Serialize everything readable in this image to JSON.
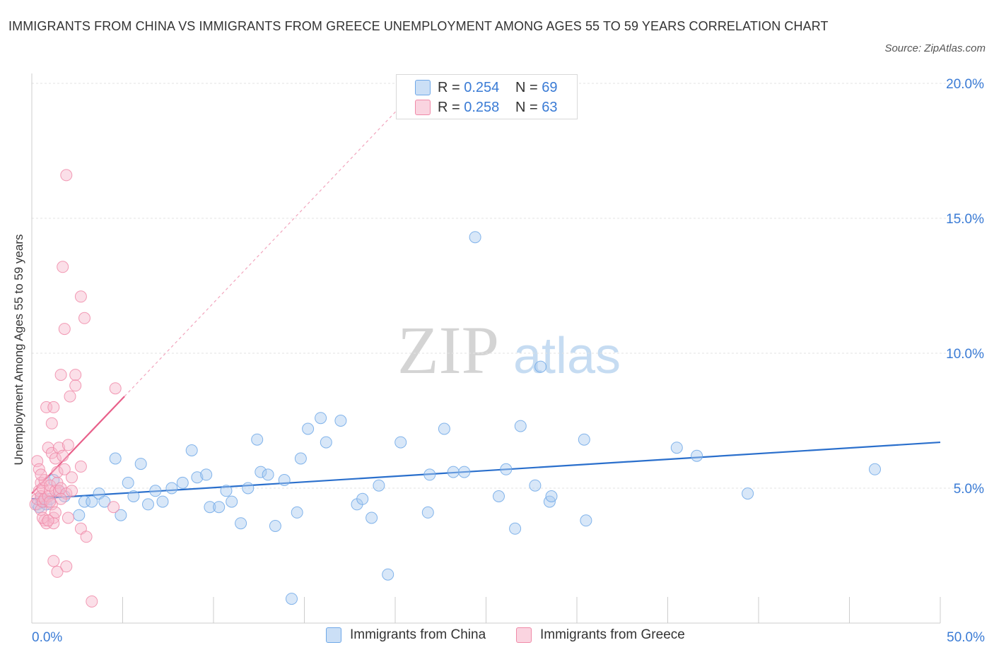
{
  "chart_data": {
    "type": "scatter",
    "title": "IMMIGRANTS FROM CHINA VS IMMIGRANTS FROM GREECE UNEMPLOYMENT AMONG AGES 55 TO 59 YEARS CORRELATION CHART",
    "source": "Source: ZipAtlas.com",
    "xlabel": "",
    "ylabel": "Unemployment Among Ages 55 to 59 years",
    "xlim": [
      0,
      50
    ],
    "ylim": [
      0,
      20
    ],
    "x_tick_labels": [
      "0.0%",
      "50.0%"
    ],
    "y_tick_labels": [
      "5.0%",
      "10.0%",
      "15.0%",
      "20.0%"
    ],
    "y_ticks": [
      5,
      10,
      15,
      20
    ],
    "x_ticks": [
      0,
      5,
      10,
      15,
      20,
      25,
      30,
      35,
      40,
      45,
      50
    ],
    "watermark": {
      "zip": "ZIP",
      "atlas": "atlas"
    },
    "stats": [
      {
        "r_label": "R = ",
        "r_value": "0.254",
        "n_label": "N = ",
        "n_value": "69"
      },
      {
        "r_label": "R = ",
        "r_value": "0.258",
        "n_label": "N = ",
        "n_value": "63"
      }
    ],
    "series": [
      {
        "name": "Immigrants from China",
        "color": "#6fa8e8",
        "fill": "#a9c9f0",
        "line_color": "#2a6fcc",
        "trend": {
          "x": [
            0,
            50
          ],
          "y": [
            4.6,
            6.7
          ]
        },
        "points": [
          [
            0.3,
            4.4
          ],
          [
            0.4,
            4.3
          ],
          [
            0.5,
            4.6
          ],
          [
            0.6,
            4.5
          ],
          [
            0.8,
            4.4
          ],
          [
            1.0,
            4.6
          ],
          [
            1.2,
            5.3
          ],
          [
            1.5,
            4.9
          ],
          [
            1.8,
            4.7
          ],
          [
            2.6,
            4.0
          ],
          [
            2.9,
            4.5
          ],
          [
            3.3,
            4.5
          ],
          [
            3.7,
            4.8
          ],
          [
            4.0,
            4.5
          ],
          [
            4.6,
            6.1
          ],
          [
            4.9,
            4.0
          ],
          [
            5.3,
            5.2
          ],
          [
            5.6,
            4.7
          ],
          [
            6.0,
            5.9
          ],
          [
            6.4,
            4.4
          ],
          [
            6.8,
            4.9
          ],
          [
            7.2,
            4.5
          ],
          [
            7.7,
            5.0
          ],
          [
            8.3,
            5.2
          ],
          [
            8.8,
            6.4
          ],
          [
            9.1,
            5.4
          ],
          [
            9.6,
            5.5
          ],
          [
            9.8,
            4.3
          ],
          [
            10.3,
            4.3
          ],
          [
            10.7,
            4.9
          ],
          [
            11.0,
            4.5
          ],
          [
            11.5,
            3.7
          ],
          [
            11.9,
            5.0
          ],
          [
            12.4,
            6.8
          ],
          [
            12.6,
            5.6
          ],
          [
            13.0,
            5.5
          ],
          [
            13.4,
            3.6
          ],
          [
            13.9,
            5.3
          ],
          [
            14.3,
            0.9
          ],
          [
            14.6,
            4.1
          ],
          [
            14.8,
            6.1
          ],
          [
            15.2,
            7.2
          ],
          [
            15.9,
            7.6
          ],
          [
            16.2,
            6.7
          ],
          [
            17.0,
            7.5
          ],
          [
            17.9,
            4.4
          ],
          [
            18.2,
            4.6
          ],
          [
            18.7,
            3.9
          ],
          [
            19.1,
            5.1
          ],
          [
            19.6,
            1.8
          ],
          [
            20.3,
            6.7
          ],
          [
            21.8,
            4.1
          ],
          [
            21.9,
            5.5
          ],
          [
            22.7,
            7.2
          ],
          [
            23.2,
            5.6
          ],
          [
            23.8,
            5.6
          ],
          [
            24.4,
            14.3
          ],
          [
            25.7,
            4.7
          ],
          [
            26.1,
            5.7
          ],
          [
            26.6,
            3.5
          ],
          [
            26.9,
            7.3
          ],
          [
            27.7,
            5.1
          ],
          [
            28.0,
            9.5
          ],
          [
            28.5,
            4.5
          ],
          [
            28.6,
            4.7
          ],
          [
            30.4,
            6.8
          ],
          [
            30.5,
            3.8
          ],
          [
            35.5,
            6.5
          ],
          [
            36.6,
            6.2
          ],
          [
            39.4,
            4.8
          ],
          [
            46.4,
            5.7
          ]
        ]
      },
      {
        "name": "Immigrants from Greece",
        "color": "#f08aa8",
        "fill": "#f7b7cb",
        "line_color": "#e8608a",
        "trend": {
          "x": [
            0,
            5.1
          ],
          "y": [
            4.8,
            8.4
          ]
        },
        "trend_ext": {
          "x": [
            5.1,
            20.8
          ],
          "y": [
            8.4,
            19.5
          ]
        },
        "points": [
          [
            0.2,
            4.4
          ],
          [
            0.3,
            6.0
          ],
          [
            0.3,
            4.6
          ],
          [
            0.4,
            5.7
          ],
          [
            0.4,
            4.9
          ],
          [
            0.5,
            4.7
          ],
          [
            0.5,
            4.2
          ],
          [
            0.5,
            5.2
          ],
          [
            0.6,
            5.0
          ],
          [
            0.6,
            4.5
          ],
          [
            0.7,
            3.8
          ],
          [
            0.7,
            4.6
          ],
          [
            0.7,
            5.3
          ],
          [
            0.8,
            8.0
          ],
          [
            0.8,
            3.7
          ],
          [
            0.9,
            4.7
          ],
          [
            0.9,
            6.5
          ],
          [
            1.0,
            4.9
          ],
          [
            1.0,
            5.1
          ],
          [
            1.1,
            4.4
          ],
          [
            1.1,
            6.3
          ],
          [
            1.1,
            7.4
          ],
          [
            1.2,
            8.0
          ],
          [
            1.2,
            2.3
          ],
          [
            1.2,
            3.9
          ],
          [
            1.2,
            3.7
          ],
          [
            1.3,
            4.9
          ],
          [
            1.3,
            6.1
          ],
          [
            1.4,
            5.2
          ],
          [
            1.4,
            5.6
          ],
          [
            1.4,
            1.9
          ],
          [
            1.5,
            6.5
          ],
          [
            1.5,
            4.9
          ],
          [
            1.6,
            9.2
          ],
          [
            1.6,
            5.0
          ],
          [
            1.7,
            13.2
          ],
          [
            1.7,
            6.2
          ],
          [
            1.8,
            10.9
          ],
          [
            1.8,
            5.7
          ],
          [
            1.9,
            4.8
          ],
          [
            1.9,
            16.6
          ],
          [
            1.9,
            2.1
          ],
          [
            2.0,
            6.6
          ],
          [
            2.1,
            8.4
          ],
          [
            2.2,
            5.4
          ],
          [
            2.4,
            9.2
          ],
          [
            2.4,
            8.8
          ],
          [
            2.7,
            5.8
          ],
          [
            2.7,
            3.5
          ],
          [
            2.7,
            12.1
          ],
          [
            2.9,
            11.3
          ],
          [
            3.0,
            3.2
          ],
          [
            3.3,
            0.8
          ],
          [
            4.5,
            4.3
          ],
          [
            4.6,
            8.7
          ],
          [
            0.6,
            3.9
          ],
          [
            1.0,
            4.5
          ],
          [
            1.3,
            4.1
          ],
          [
            0.9,
            3.8
          ],
          [
            2.0,
            3.9
          ],
          [
            0.5,
            5.5
          ],
          [
            1.6,
            4.6
          ],
          [
            2.2,
            4.9
          ]
        ]
      }
    ]
  }
}
